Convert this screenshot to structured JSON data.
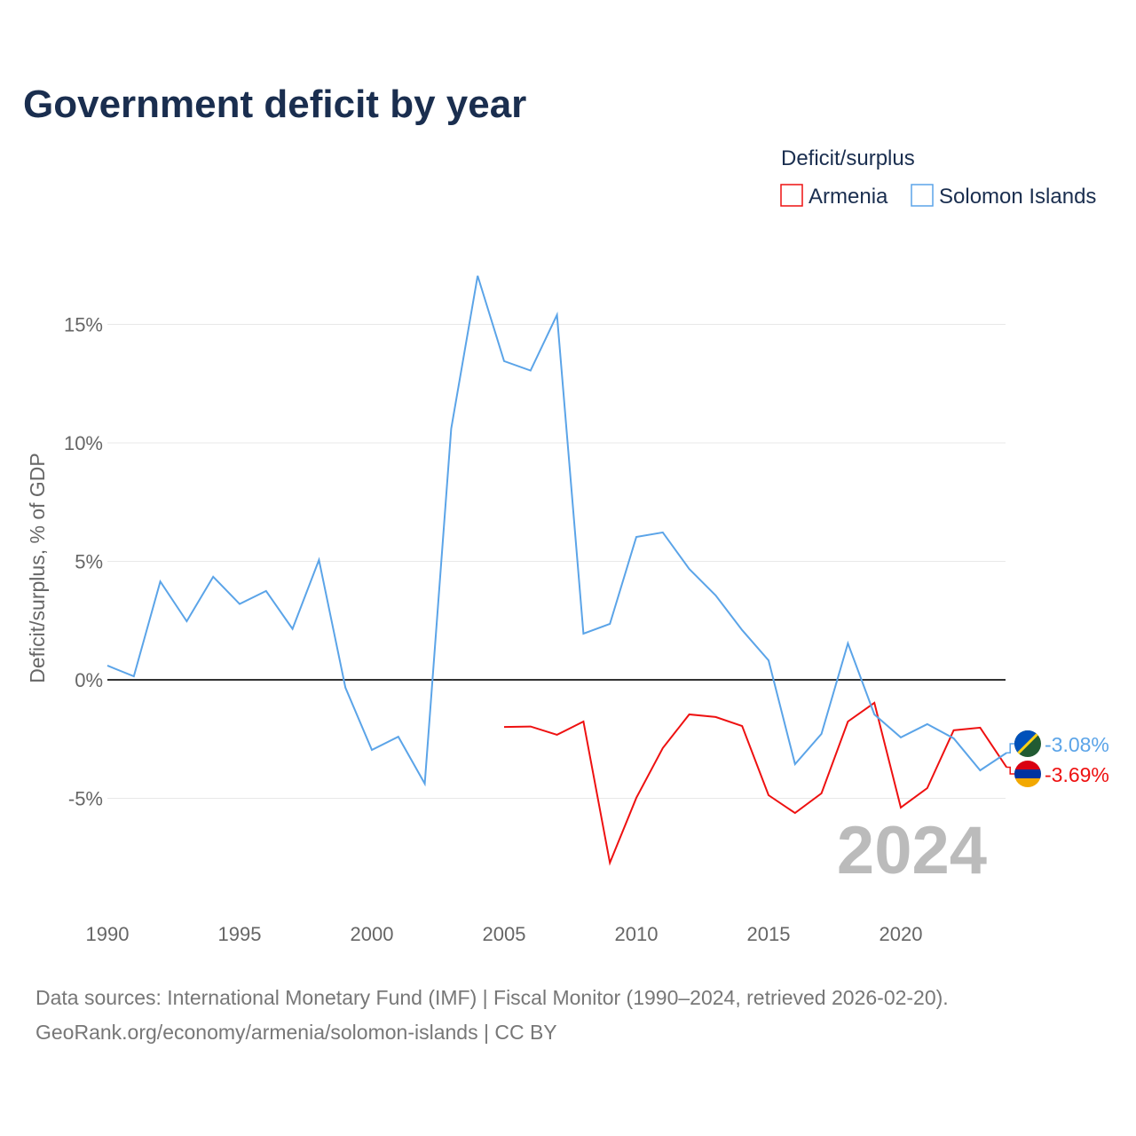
{
  "chart_data": {
    "type": "line",
    "title": "Government deficit by year",
    "xlabel": "",
    "ylabel": "Deficit/surplus, % of GDP",
    "xlim": [
      1990,
      2024
    ],
    "ylim": [
      -8.8,
      18
    ],
    "x_ticks": [
      1990,
      1995,
      2000,
      2005,
      2010,
      2015,
      2020
    ],
    "x_tick_labels": [
      "1990",
      "1995",
      "2000",
      "2005",
      "2010",
      "2015",
      "2020"
    ],
    "y_ticks": [
      -5,
      0,
      5,
      10,
      15
    ],
    "y_tick_labels": [
      "-5%",
      "0%",
      "5%",
      "10%",
      "15%"
    ],
    "grid": true,
    "legend": {
      "title": "Deficit/surplus",
      "placement": "top-right"
    },
    "year_watermark": "2024",
    "series": [
      {
        "name": "Armenia",
        "color": "#ee1111",
        "end_label": "-3.69%",
        "x": [
          2005,
          2006,
          2007,
          2008,
          2009,
          2010,
          2011,
          2012,
          2013,
          2014,
          2015,
          2016,
          2017,
          2018,
          2019,
          2020,
          2021,
          2022,
          2023,
          2024
        ],
        "values": [
          -1.99,
          -1.97,
          -2.32,
          -1.76,
          -7.72,
          -4.98,
          -2.88,
          -1.46,
          -1.57,
          -1.95,
          -4.87,
          -5.62,
          -4.79,
          -1.76,
          -0.97,
          -5.39,
          -4.57,
          -2.13,
          -2.02,
          -3.69
        ]
      },
      {
        "name": "Solomon Islands",
        "color": "#5ba4e8",
        "end_label": "-3.08%",
        "x": [
          1990,
          1991,
          1992,
          1993,
          1994,
          1995,
          1996,
          1997,
          1998,
          1999,
          2000,
          2001,
          2002,
          2003,
          2004,
          2005,
          2006,
          2007,
          2008,
          2009,
          2010,
          2011,
          2012,
          2013,
          2014,
          2015,
          2016,
          2017,
          2018,
          2019,
          2020,
          2021,
          2022,
          2023,
          2024
        ],
        "values": [
          0.6,
          0.15,
          4.15,
          2.47,
          4.35,
          3.2,
          3.75,
          2.15,
          5.06,
          -0.33,
          -2.96,
          -2.4,
          -4.38,
          10.6,
          17.05,
          13.45,
          13.05,
          15.4,
          1.95,
          2.36,
          6.03,
          6.22,
          4.68,
          3.56,
          2.1,
          0.82,
          -3.56,
          -2.28,
          1.54,
          -1.46,
          -2.43,
          -1.87,
          -2.47,
          -3.82,
          -3.08
        ]
      }
    ]
  },
  "footer": {
    "line1": "Data sources: International Monetary Fund (IMF) | Fiscal Monitor (1990–2024, retrieved 2026-02-20).",
    "line2": "GeoRank.org/economy/armenia/solomon-islands | CC BY"
  }
}
